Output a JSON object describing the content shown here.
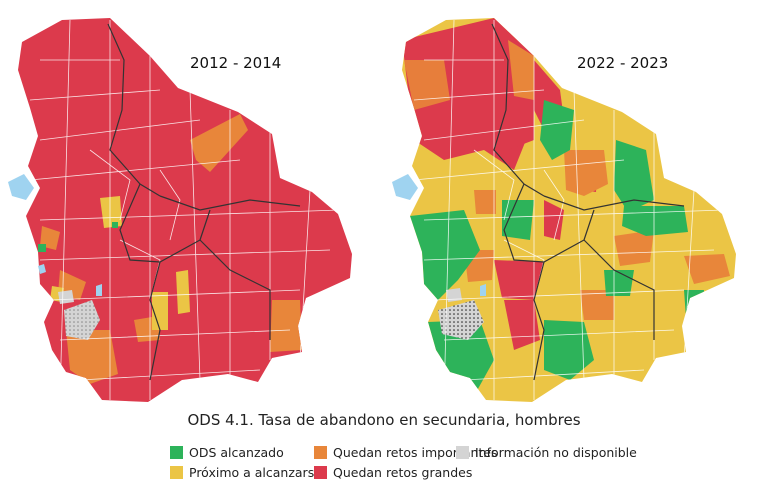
{
  "maps": [
    {
      "period": "2012 - 2014"
    },
    {
      "period": "2022 - 2023"
    }
  ],
  "title": "ODS 4.1. Tasa de abandono en secundaria, hombres",
  "legend": [
    {
      "label": "ODS alcanzado",
      "color": "#2db35a"
    },
    {
      "label": "Próximo a alcanzarse",
      "color": "#ebc545"
    },
    {
      "label": "Quedan retos importantes",
      "color": "#e8863a"
    },
    {
      "label": "Quedan retos grandes",
      "color": "#dc3a4c"
    },
    {
      "label": "Información no disponible",
      "color": "#d4d4d4"
    }
  ],
  "colors": {
    "water": "#9fd3f0",
    "border": "#ffffff",
    "dept_border": "#333333"
  }
}
